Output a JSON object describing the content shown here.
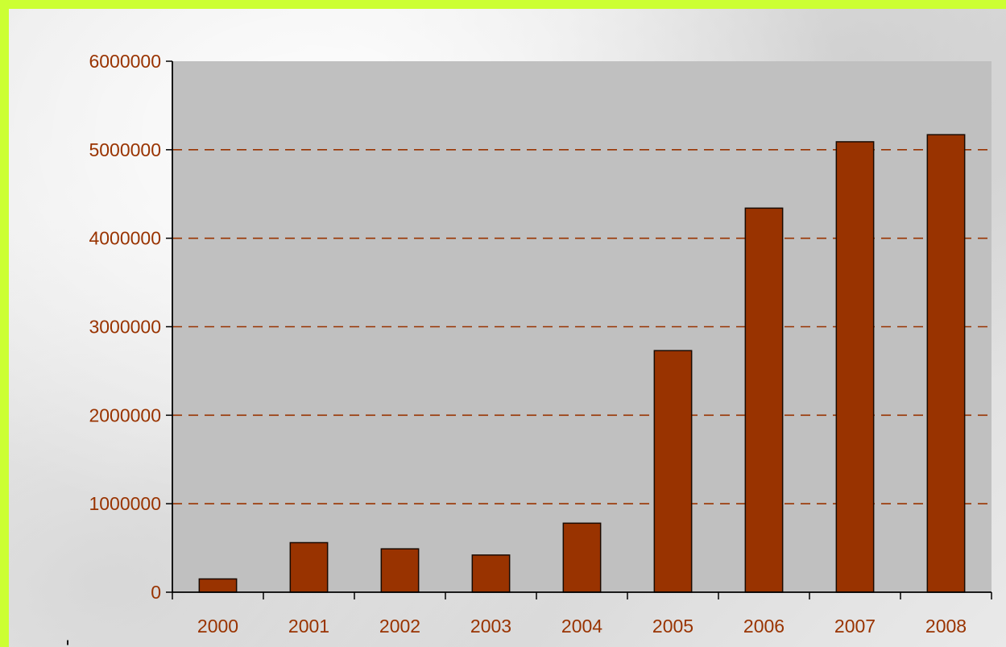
{
  "colors": {
    "frame": "#ccff33",
    "plot_area": "#c0c0c0",
    "bar_fill": "#993300",
    "bar_stroke": "#1a0a00",
    "gridline": "#993300",
    "label_text": "#993300",
    "axis": "#000000"
  },
  "chart_data": {
    "type": "bar",
    "categories": [
      "2000",
      "2001",
      "2002",
      "2003",
      "2004",
      "2005",
      "2006",
      "2007",
      "2008"
    ],
    "values": [
      150000,
      560000,
      490000,
      420000,
      780000,
      2730000,
      4340000,
      5090000,
      5170000
    ],
    "y_ticks": [
      "0",
      "1000000",
      "2000000",
      "3000000",
      "4000000",
      "5000000",
      "6000000"
    ],
    "ylim": [
      0,
      6000000
    ],
    "grid": true,
    "gridline_style": "dashed",
    "legend": "none"
  },
  "stray_mark": "'"
}
